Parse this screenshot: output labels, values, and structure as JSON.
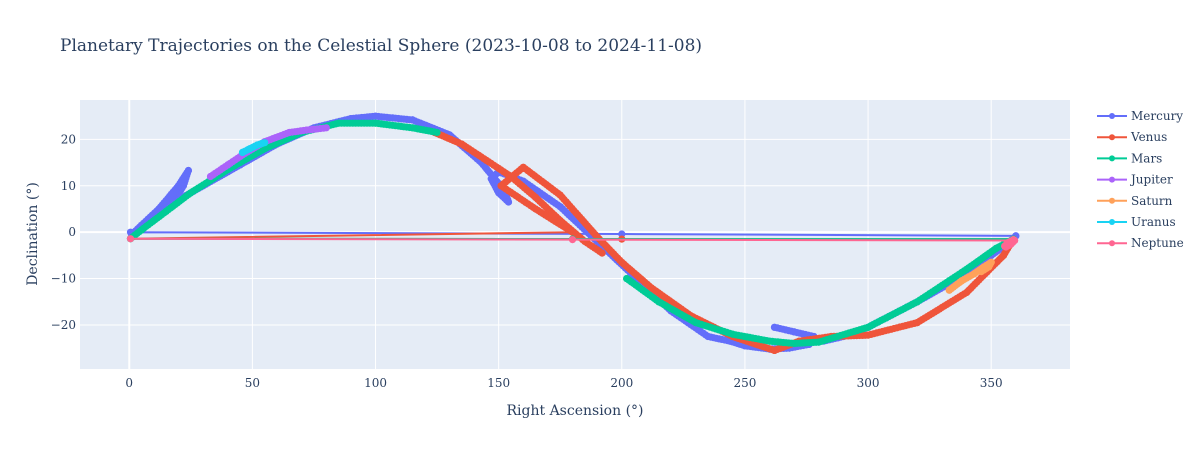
{
  "chart_data": {
    "type": "line",
    "title": "Planetary Trajectories on the Celestial Sphere (2023-10-08 to 2024-11-08)",
    "xlabel": "Right Ascension (°)",
    "ylabel": "Declination (°)",
    "xlim": [
      -20,
      382
    ],
    "ylim": [
      -29.5,
      28.5
    ],
    "xticks": [
      0,
      50,
      100,
      150,
      200,
      250,
      300,
      350
    ],
    "yticks": [
      -20,
      -10,
      0,
      10,
      20
    ],
    "xtick_labels": [
      "0",
      "50",
      "100",
      "150",
      "200",
      "250",
      "300",
      "350"
    ],
    "ytick_labels": [
      "−20",
      "−10",
      "0",
      "10",
      "20"
    ],
    "grid": true,
    "legend_position": "right",
    "colors": {
      "plot_bg": "#e5ecf6",
      "grid": "#ffffff",
      "text": "#2a3f5f"
    },
    "series": [
      {
        "name": "Mercury",
        "color": "#636efa",
        "x": [
          262,
          270,
          278,
          276,
          268,
          260,
          250,
          244,
          235,
          220,
          205,
          190,
          175,
          160,
          150,
          147,
          150,
          154,
          153,
          150,
          143,
          130,
          115,
          100,
          90,
          75,
          60,
          45,
          30,
          20,
          15,
          18,
          22,
          24,
          20,
          12,
          5,
          1,
          0.5,
          200,
          360,
          358,
          350,
          340,
          320,
          300,
          290,
          282
        ],
        "y": [
          -20.5,
          -21.5,
          -22.5,
          -24.2,
          -25,
          -25.2,
          -24.5,
          -23.5,
          -22.5,
          -17,
          -9.5,
          -2,
          5.5,
          11,
          13,
          11.5,
          8.5,
          6.5,
          8,
          10.5,
          15,
          21,
          24.2,
          25,
          24.5,
          22.5,
          19,
          14.5,
          10,
          7,
          5.2,
          6.5,
          10,
          13.3,
          10,
          5,
          1.5,
          -0.5,
          0,
          -0.4,
          -0.8,
          -2,
          -5,
          -9,
          -15,
          -20.5,
          -22.5,
          -23.5
        ]
      },
      {
        "name": "Venus",
        "color": "#ef553b",
        "x": [
          262,
          272,
          285,
          300,
          320,
          340,
          355,
          359,
          200,
          0.5,
          180,
          165,
          151,
          160,
          175,
          190,
          200,
          212,
          228,
          245,
          262
        ],
        "y": [
          -25.5,
          -23.5,
          -22.5,
          -22.2,
          -19.5,
          -13,
          -5,
          -1.5,
          -1.5,
          -1.4,
          0,
          5,
          10,
          14,
          8,
          -1,
          -6.5,
          -12,
          -18,
          -22.5,
          -25.5
        ]
      },
      {
        "name": "Venus",
        "color": "#ef553b",
        "x": [
          124,
          135,
          145,
          155,
          165,
          175,
          185,
          192
        ],
        "y": [
          21.5,
          19,
          15.5,
          12,
          7.5,
          2.5,
          -2,
          -4.5
        ]
      },
      {
        "name": "Mars",
        "color": "#00cc96",
        "x": [
          202,
          215,
          230,
          245,
          260,
          270,
          280,
          300,
          320,
          340,
          352,
          359,
          180,
          0.5,
          5,
          15,
          25,
          40,
          55,
          70,
          85,
          100,
          115,
          125
        ],
        "y": [
          -10,
          -15,
          -19.5,
          -22,
          -23.5,
          -24,
          -23.7,
          -20.5,
          -15,
          -8,
          -3.5,
          -1.5,
          -1.5,
          -1.4,
          0.5,
          4.5,
          8.5,
          13.5,
          18,
          21.5,
          23.5,
          23.5,
          22.5,
          21.5
        ]
      },
      {
        "name": "Jupiter",
        "color": "#ab63fa",
        "x": [
          33,
          40,
          47,
          55,
          65,
          72,
          80
        ],
        "y": [
          12,
          14.5,
          17,
          19.5,
          21.5,
          22,
          22.5
        ]
      },
      {
        "name": "Saturn",
        "color": "#ffa15a",
        "x": [
          333,
          338,
          343,
          347,
          350,
          349,
          346
        ],
        "y": [
          -12.5,
          -10.5,
          -9,
          -7.5,
          -6.5,
          -7.5,
          -8.5
        ]
      },
      {
        "name": "Uranus",
        "color": "#19d3f3",
        "x": [
          46,
          49,
          52,
          55
        ],
        "y": [
          17.2,
          18,
          18.8,
          19.3
        ]
      },
      {
        "name": "Neptune",
        "color": "#ff6692",
        "x": [
          0.5,
          180,
          359.5,
          358,
          356,
          355.5,
          357,
          359
        ],
        "y": [
          -1.4,
          -1.6,
          -1.8,
          -2.6,
          -3.2,
          -3,
          -2.2,
          -1.6
        ]
      }
    ],
    "legend": [
      {
        "name": "Mercury",
        "color": "#636efa"
      },
      {
        "name": "Venus",
        "color": "#ef553b"
      },
      {
        "name": "Mars",
        "color": "#00cc96"
      },
      {
        "name": "Jupiter",
        "color": "#ab63fa"
      },
      {
        "name": "Saturn",
        "color": "#ffa15a"
      },
      {
        "name": "Uranus",
        "color": "#19d3f3"
      },
      {
        "name": "Neptune",
        "color": "#ff6692"
      }
    ]
  }
}
